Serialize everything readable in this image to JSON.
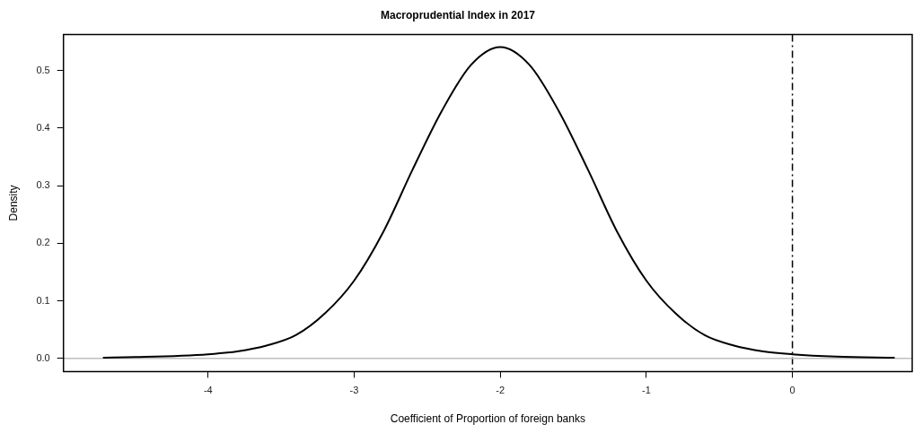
{
  "chart_data": {
    "type": "line",
    "title": "Macroprudential Index in 2017",
    "xlabel": "Coefficient of Proportion of foreign banks",
    "ylabel": "Density",
    "x": [
      -4.72,
      -4.5,
      -4.0,
      -3.8,
      -3.6,
      -3.4,
      -3.2,
      -3.0,
      -2.8,
      -2.6,
      -2.4,
      -2.2,
      -2.0,
      -1.8,
      -1.6,
      -1.4,
      -1.2,
      -1.0,
      -0.8,
      -0.6,
      -0.4,
      -0.2,
      0.0,
      0.3,
      0.7
    ],
    "series": [
      {
        "color": "#000000",
        "values": [
          0.001,
          0.002,
          0.007,
          0.012,
          0.022,
          0.04,
          0.078,
          0.135,
          0.22,
          0.328,
          0.43,
          0.51,
          0.541,
          0.51,
          0.43,
          0.328,
          0.22,
          0.135,
          0.078,
          0.04,
          0.022,
          0.012,
          0.007,
          0.003,
          0.001
        ]
      }
    ],
    "xlim": [
      -4.99,
      0.82
    ],
    "xticks": [
      -4,
      -3,
      -2,
      -1,
      0
    ],
    "ylim": [
      -0.023,
      0.563
    ],
    "yticks": [
      {
        "value": 0,
        "label": "0.0"
      },
      0.1,
      0.2,
      0.3,
      0.4,
      0.5
    ],
    "ref_lines": [
      {
        "axis": "x",
        "value": 0,
        "color": "#000000",
        "line_style": "dashdot"
      },
      {
        "axis": "y",
        "value": 0,
        "color": "#bebebe",
        "line_style": "solid"
      }
    ],
    "grid": false,
    "legend": false,
    "marker": "none",
    "line_style": "solid"
  }
}
